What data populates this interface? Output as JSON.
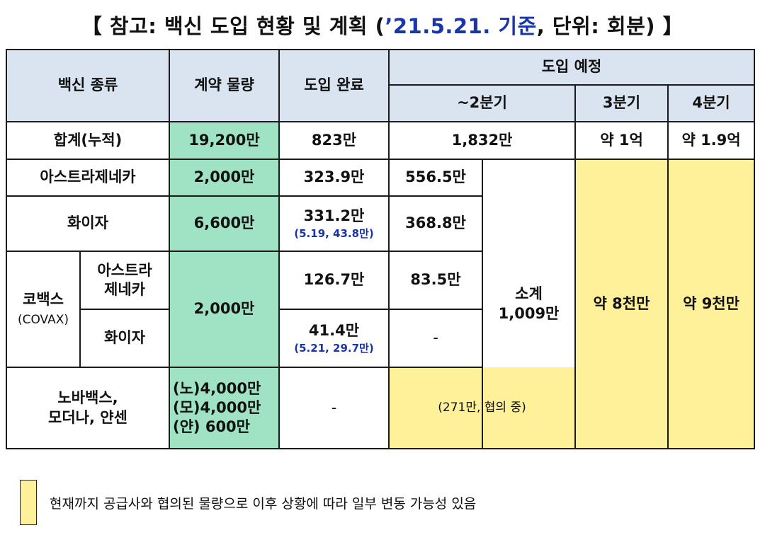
{
  "title": {
    "prefix": "【 참고: 백신 도입 현황 및 계획 (",
    "date": "’21.5.21. 기준",
    "suffix": ", 단위: 회분) 】"
  },
  "headers": {
    "vaccine_type": "백신 종류",
    "contract": "계약 물량",
    "delivered": "도입 완료",
    "planned": "도입 예정",
    "q2": "~2분기",
    "q3": "3분기",
    "q4": "4분기"
  },
  "total": {
    "label": "합계(누적)",
    "contract": "19,200만",
    "delivered": "823만",
    "q2": "1,832만",
    "q3": "약 1억",
    "q4": "약 1.9억"
  },
  "az": {
    "label": "아스트라제네카",
    "contract": "2,000만",
    "delivered": "323.9만",
    "q2": "556.5만"
  },
  "pfizer": {
    "label": "화이자",
    "contract": "6,600만",
    "delivered": "331.2만",
    "delivered_note": "(5.19, 43.8만)",
    "q2": "368.8만"
  },
  "covax": {
    "label": "코백스",
    "label_en": "(COVAX)",
    "contract": "2,000만",
    "az_label": "아스트라제네카",
    "az_delivered": "126.7만",
    "az_q2": "83.5만",
    "pf_label": "화이자",
    "pf_delivered": "41.4만",
    "pf_note": "(5.21, 29.7만)",
    "pf_q2": "-"
  },
  "subtotal": {
    "label": "소계",
    "value": "1,009만"
  },
  "q3_value": "약 8천만",
  "q4_value": "약 9천만",
  "others": {
    "label_line1": "노바백스,",
    "label_line2": "모더나, 얀센",
    "contract_1": "(노)4,000만",
    "contract_2": "(모)4,000만",
    "contract_3": "(얀) 600만",
    "delivered": "-",
    "q2": "(271만, 협의 중)"
  },
  "legend": "현재까지 공급사와 협의된 물량으로 이후 상황에 따라 일부 변동 가능성 있음",
  "colors": {
    "header": "#dae4f1",
    "contract": "#9fe3c4",
    "tentative": "#fff09a",
    "date_text": "#1a35a8"
  }
}
